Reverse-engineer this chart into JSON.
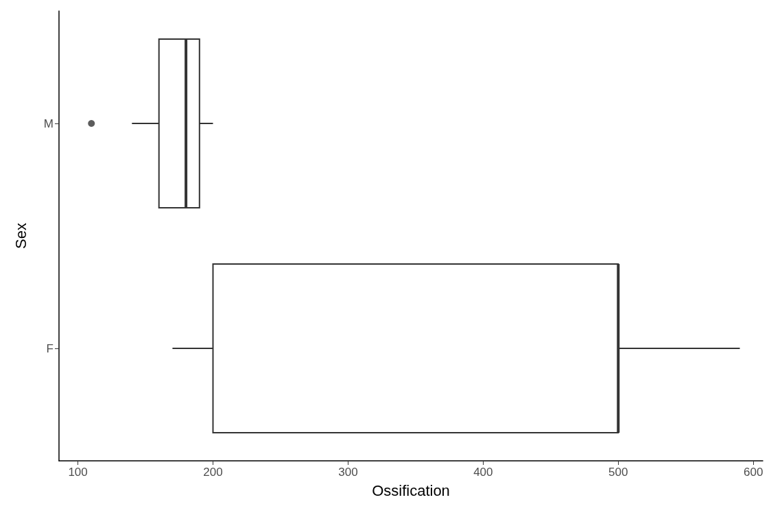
{
  "chart_data": {
    "type": "box",
    "orientation": "horizontal",
    "xlabel": "Ossification",
    "ylabel": "Sex",
    "categories": [
      "M",
      "F"
    ],
    "boxes": [
      {
        "low": 140,
        "q1": 160,
        "median": 180,
        "q3": 190,
        "high": 200,
        "outliers": [
          110
        ]
      },
      {
        "low": 170,
        "q1": 200,
        "median": 500,
        "q3": 500,
        "high": 590
      }
    ],
    "color": "#333333",
    "xlim": [
      86,
      607
    ],
    "xticks": [
      100,
      200,
      300,
      400,
      500,
      600
    ],
    "grid": false
  }
}
